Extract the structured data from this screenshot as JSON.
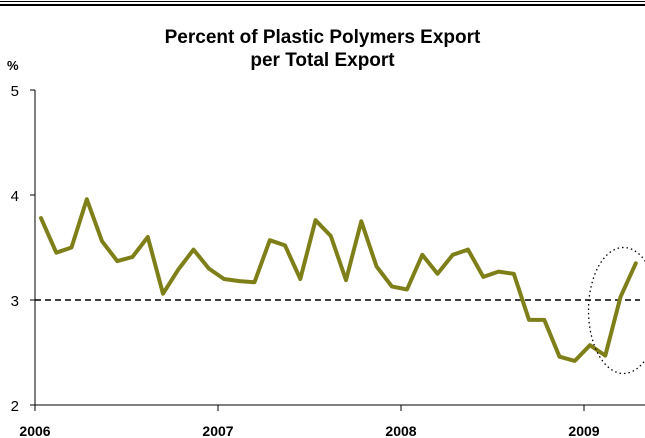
{
  "chart_data": {
    "type": "line",
    "title_lines": [
      "Percent of Plastic Polymers Export",
      "per Total Export"
    ],
    "ylabel": "%",
    "xlabel": "",
    "ylim": [
      2,
      5
    ],
    "y_ticks": [
      "2",
      "3",
      "4",
      "5"
    ],
    "x_tick_labels": [
      "2006",
      "2007",
      "2008",
      "2009"
    ],
    "x": [
      "2006-01",
      "2006-02",
      "2006-03",
      "2006-04",
      "2006-05",
      "2006-06",
      "2006-07",
      "2006-08",
      "2006-09",
      "2006-10",
      "2006-11",
      "2006-12",
      "2007-01",
      "2007-02",
      "2007-03",
      "2007-04",
      "2007-05",
      "2007-06",
      "2007-07",
      "2007-08",
      "2007-09",
      "2007-10",
      "2007-11",
      "2007-12",
      "2008-01",
      "2008-02",
      "2008-03",
      "2008-04",
      "2008-05",
      "2008-06",
      "2008-07",
      "2008-08",
      "2008-09",
      "2008-10",
      "2008-11",
      "2008-12",
      "2009-01",
      "2009-02",
      "2009-03",
      "2009-04"
    ],
    "series": [
      {
        "color": "#7f7f1a",
        "values": [
          3.78,
          3.45,
          3.5,
          3.96,
          3.56,
          3.37,
          3.41,
          3.6,
          3.06,
          3.29,
          3.48,
          3.3,
          3.2,
          3.18,
          3.17,
          3.57,
          3.52,
          3.2,
          3.76,
          3.61,
          3.19,
          3.75,
          3.32,
          3.13,
          3.1,
          3.43,
          3.25,
          3.43,
          3.48,
          3.22,
          3.27,
          3.25,
          2.81,
          2.81,
          2.46,
          2.42,
          2.57,
          2.47,
          3.03,
          3.35
        ]
      }
    ],
    "reference_line": {
      "value": 3.0,
      "style": "dashed",
      "color": "#000000"
    },
    "annotation": {
      "shape": "dotted-ellipse",
      "around": [
        "2009-02",
        "2009-04"
      ]
    },
    "grid": false
  }
}
